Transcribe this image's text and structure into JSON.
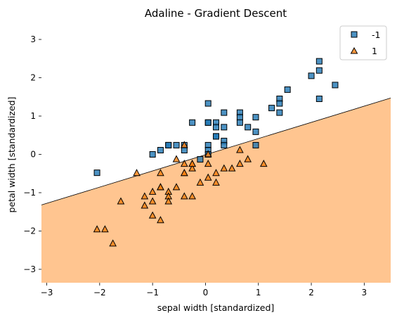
{
  "chart_data": {
    "type": "scatter",
    "title": "Adaline - Gradient Descent",
    "xlabel": "sepal width [standardized]",
    "ylabel": "petal width [standardized]",
    "xlim": [
      -3.1,
      3.5
    ],
    "ylim": [
      -3.35,
      3.35
    ],
    "x_ticks": [
      -3,
      -2,
      -1,
      0,
      1,
      2,
      3
    ],
    "y_ticks": [
      -3,
      -2,
      -1,
      0,
      1,
      2,
      3
    ],
    "grid": false,
    "legend_position": "top-right",
    "decision_boundary": {
      "points": [
        [
          -3.1,
          -1.32
        ],
        [
          3.5,
          1.47
        ]
      ],
      "region_below_class": "1",
      "region_below_color": "#ffc590"
    },
    "series": [
      {
        "name": "-1",
        "marker": "square",
        "color": "#1f77b4",
        "points": [
          [
            -2.05,
            -0.48
          ],
          [
            -1.0,
            0.0
          ],
          [
            -0.85,
            0.11
          ],
          [
            -0.7,
            0.24
          ],
          [
            -0.7,
            0.24
          ],
          [
            -0.55,
            0.24
          ],
          [
            -0.4,
            0.24
          ],
          [
            -0.4,
            0.11
          ],
          [
            -0.25,
            0.83
          ],
          [
            -0.1,
            -0.13
          ],
          [
            0.05,
            1.33
          ],
          [
            0.05,
            0.83
          ],
          [
            0.05,
            0.83
          ],
          [
            0.05,
            0.24
          ],
          [
            0.05,
            0.11
          ],
          [
            0.05,
            0.0
          ],
          [
            0.2,
            0.83
          ],
          [
            0.2,
            0.71
          ],
          [
            0.2,
            0.47
          ],
          [
            0.2,
            0.47
          ],
          [
            0.35,
            1.09
          ],
          [
            0.35,
            0.71
          ],
          [
            0.35,
            0.35
          ],
          [
            0.35,
            0.24
          ],
          [
            0.65,
            1.09
          ],
          [
            0.65,
            0.97
          ],
          [
            0.65,
            0.83
          ],
          [
            0.8,
            0.71
          ],
          [
            0.95,
            0.97
          ],
          [
            0.95,
            0.59
          ],
          [
            0.95,
            0.24
          ],
          [
            1.25,
            1.21
          ],
          [
            1.4,
            1.45
          ],
          [
            1.4,
            1.33
          ],
          [
            1.4,
            1.09
          ],
          [
            1.55,
            1.69
          ],
          [
            2.0,
            2.05
          ],
          [
            2.15,
            2.43
          ],
          [
            2.15,
            2.19
          ],
          [
            2.15,
            1.45
          ],
          [
            2.45,
            1.81
          ]
        ]
      },
      {
        "name": "1",
        "marker": "triangle",
        "color": "#ff7f0e",
        "points": [
          [
            -2.05,
            -1.96
          ],
          [
            -1.9,
            -1.96
          ],
          [
            -1.75,
            -2.33
          ],
          [
            -1.6,
            -1.23
          ],
          [
            -1.3,
            -0.49
          ],
          [
            -1.15,
            -1.1
          ],
          [
            -1.15,
            -1.34
          ],
          [
            -1.0,
            -0.98
          ],
          [
            -1.0,
            -1.23
          ],
          [
            -1.0,
            -1.6
          ],
          [
            -0.85,
            -0.49
          ],
          [
            -0.85,
            -0.86
          ],
          [
            -0.85,
            -0.86
          ],
          [
            -0.85,
            -1.72
          ],
          [
            -0.7,
            -0.98
          ],
          [
            -0.7,
            -1.1
          ],
          [
            -0.7,
            -1.23
          ],
          [
            -0.55,
            -0.13
          ],
          [
            -0.55,
            -0.86
          ],
          [
            -0.4,
            0.24
          ],
          [
            -0.4,
            -0.25
          ],
          [
            -0.4,
            -0.49
          ],
          [
            -0.4,
            -0.49
          ],
          [
            -0.4,
            -1.1
          ],
          [
            -0.25,
            -0.25
          ],
          [
            -0.25,
            -0.37
          ],
          [
            -0.25,
            -0.25
          ],
          [
            -0.25,
            -1.1
          ],
          [
            -0.1,
            -0.74
          ],
          [
            0.05,
            -0.25
          ],
          [
            0.05,
            -0.61
          ],
          [
            0.05,
            0.0
          ],
          [
            0.2,
            -0.49
          ],
          [
            0.2,
            -0.74
          ],
          [
            0.35,
            -0.37
          ],
          [
            0.5,
            -0.37
          ],
          [
            0.65,
            -0.25
          ],
          [
            0.65,
            0.11
          ],
          [
            0.8,
            -0.13
          ],
          [
            1.1,
            -0.25
          ]
        ]
      }
    ]
  }
}
